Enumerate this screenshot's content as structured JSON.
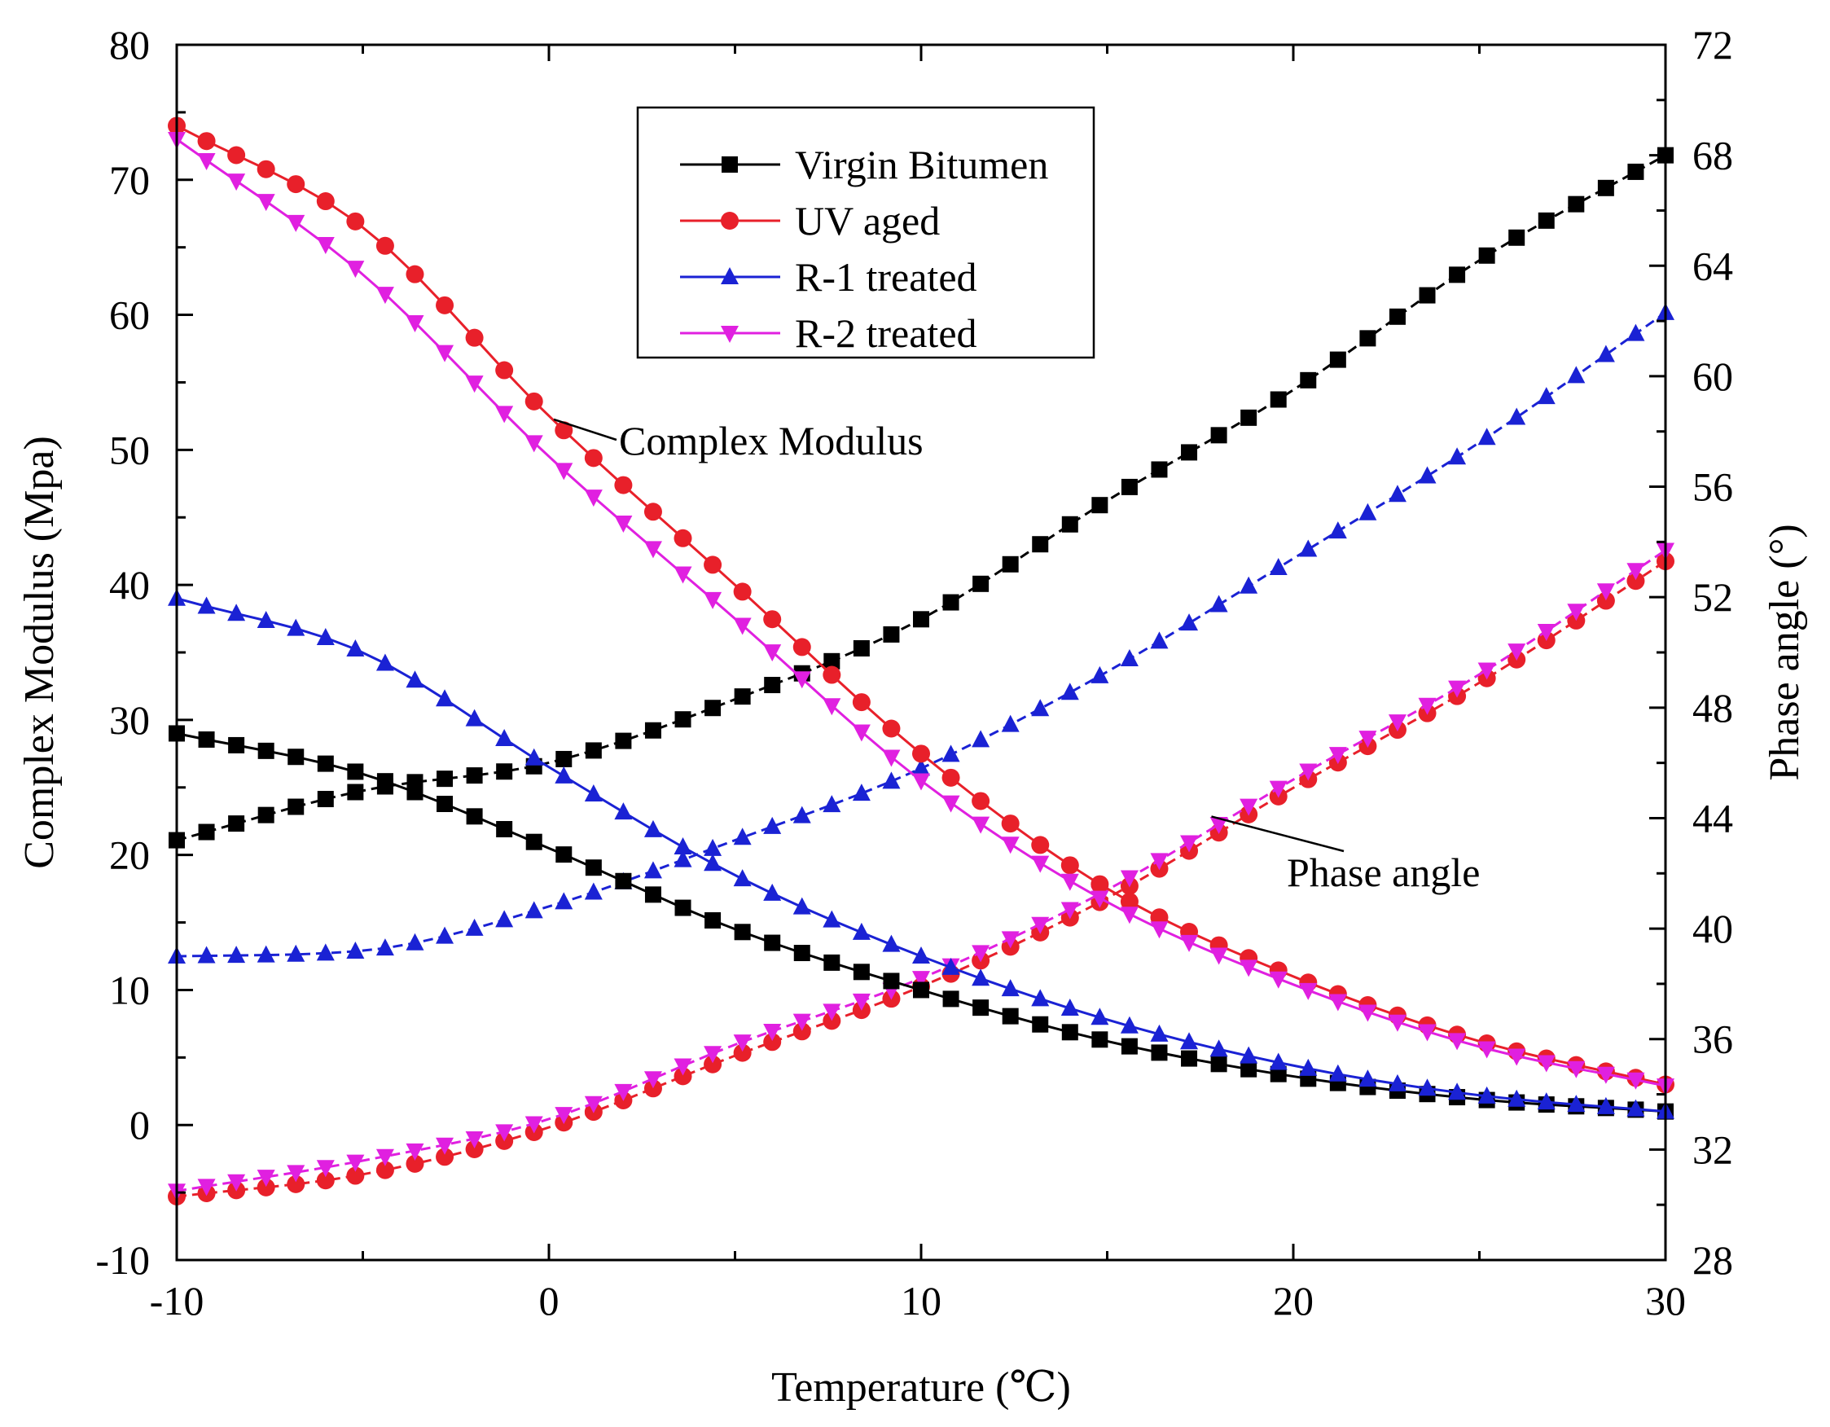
{
  "chart_data": {
    "type": "line",
    "title": "",
    "xlabel": "Temperature (℃)",
    "ylabel_left": "Complex Modulus (Mpa)",
    "ylabel_right": "Phase angle (°)",
    "xlim": [
      -10,
      30
    ],
    "ylim_left": [
      -10,
      80
    ],
    "ylim_right": [
      28,
      72
    ],
    "x_ticks": [
      -10,
      0,
      10,
      20,
      30
    ],
    "y_left_ticks": [
      -10,
      0,
      10,
      20,
      30,
      40,
      50,
      60,
      70,
      80
    ],
    "y_right_ticks": [
      28,
      32,
      36,
      40,
      44,
      48,
      52,
      56,
      60,
      64,
      68,
      72
    ],
    "grid": false,
    "legend_position": "top-center",
    "x_step": 0.8,
    "series": [
      {
        "name": "Virgin Bitumen",
        "color": "#000000",
        "marker": "square",
        "modulus_anchors": [
          [
            -10,
            29
          ],
          [
            -5,
            26
          ],
          [
            0,
            20.5
          ],
          [
            5,
            14.5
          ],
          [
            10,
            10
          ],
          [
            15,
            6.2
          ],
          [
            20,
            3.6
          ],
          [
            25,
            1.9
          ],
          [
            30,
            1.0
          ]
        ],
        "phase_anchors": [
          [
            -10,
            43.2
          ],
          [
            -5,
            45.0
          ],
          [
            0,
            46.0
          ],
          [
            5,
            48.3
          ],
          [
            10,
            51.2
          ],
          [
            15,
            55.5
          ],
          [
            20,
            59.5
          ],
          [
            25,
            64.2
          ],
          [
            30,
            68.0
          ]
        ]
      },
      {
        "name": "UV aged",
        "color": "#e8202a",
        "marker": "circle",
        "modulus_anchors": [
          [
            -10,
            74
          ],
          [
            -5,
            66.5
          ],
          [
            0,
            52.5
          ],
          [
            5,
            40
          ],
          [
            10,
            27.5
          ],
          [
            15,
            17.5
          ],
          [
            20,
            11
          ],
          [
            25,
            6.2
          ],
          [
            30,
            3.0
          ]
        ],
        "phase_anchors": [
          [
            -10,
            30.3
          ],
          [
            -5,
            31.1
          ],
          [
            0,
            32.8
          ],
          [
            5,
            35.4
          ],
          [
            10,
            37.9
          ],
          [
            15,
            41.1
          ],
          [
            20,
            45.1
          ],
          [
            25,
            48.9
          ],
          [
            30,
            53.3
          ]
        ]
      },
      {
        "name": "R-1 treated",
        "color": "#1a22d4",
        "marker": "triangle-up",
        "modulus_anchors": [
          [
            -10,
            39
          ],
          [
            -5,
            35
          ],
          [
            0,
            26.5
          ],
          [
            5,
            18.5
          ],
          [
            10,
            12.5
          ],
          [
            15,
            7.8
          ],
          [
            20,
            4.4
          ],
          [
            25,
            2.2
          ],
          [
            30,
            1.0
          ]
        ],
        "phase_anchors": [
          [
            -10,
            39.0
          ],
          [
            -5,
            39.2
          ],
          [
            0,
            40.8
          ],
          [
            5,
            43.2
          ],
          [
            10,
            45.8
          ],
          [
            15,
            49.3
          ],
          [
            20,
            53.4
          ],
          [
            25,
            57.6
          ],
          [
            30,
            62.3
          ]
        ]
      },
      {
        "name": "R-2 treated",
        "color": "#e020e0",
        "marker": "triangle-down",
        "modulus_anchors": [
          [
            -10,
            73
          ],
          [
            -5,
            63
          ],
          [
            0,
            49.5
          ],
          [
            5,
            37.5
          ],
          [
            10,
            25.5
          ],
          [
            15,
            16.5
          ],
          [
            20,
            10.4
          ],
          [
            25,
            5.8
          ],
          [
            30,
            2.9
          ]
        ],
        "phase_anchors": [
          [
            -10,
            30.5
          ],
          [
            -5,
            31.6
          ],
          [
            0,
            33.1
          ],
          [
            5,
            35.8
          ],
          [
            10,
            38.2
          ],
          [
            15,
            41.4
          ],
          [
            20,
            45.4
          ],
          [
            25,
            49.2
          ],
          [
            30,
            53.7
          ]
        ]
      }
    ],
    "annotations": [
      {
        "text": "Complex Modulus",
        "near": [
          0,
          52.5
        ]
      },
      {
        "text": "Phase angle",
        "near": [
          20,
          45.1
        ]
      }
    ]
  }
}
